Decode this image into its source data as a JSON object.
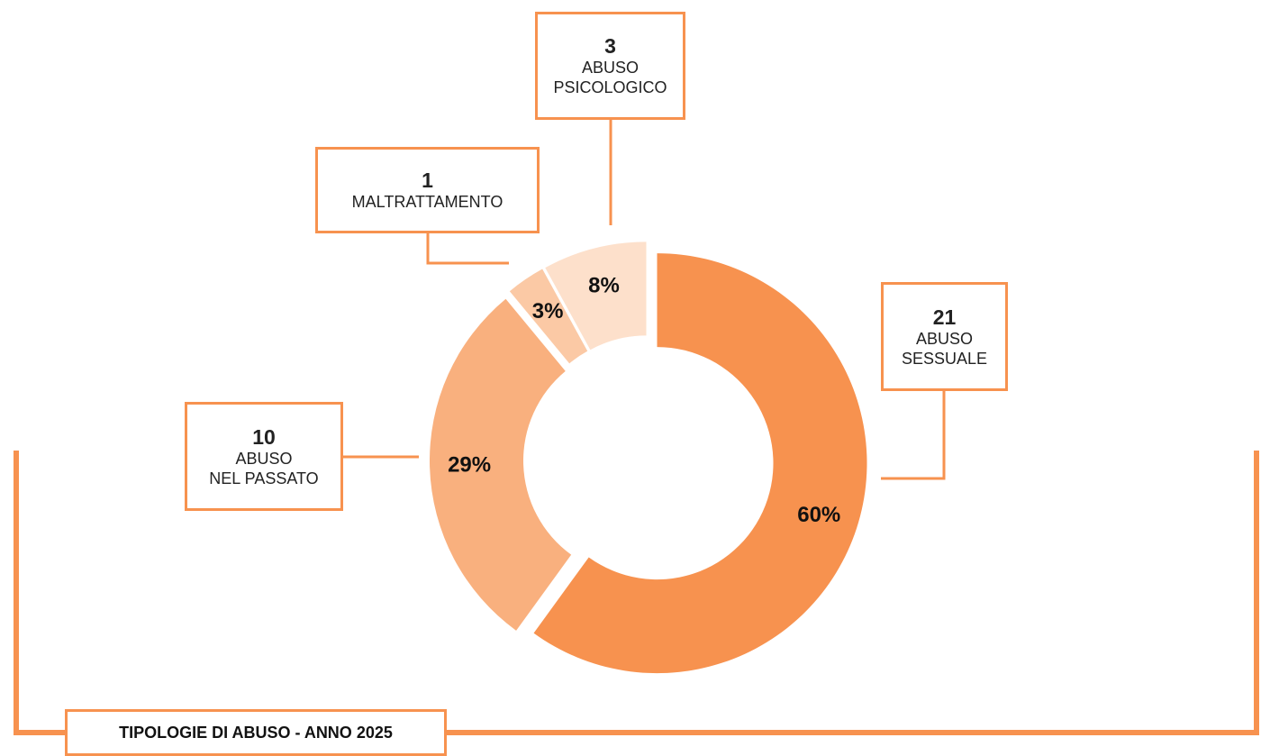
{
  "chart_data": {
    "type": "donut",
    "title": "TIPOLOGIE DI ABUSO - ANNO 2025",
    "categories": [
      "ABUSO\nSESSUALE",
      "ABUSO\nNEL PASSATO",
      "MALTRATTAMENTO",
      "ABUSO\nPSICOLOGICO"
    ],
    "counts": [
      21,
      10,
      1,
      3
    ],
    "values": [
      60,
      29,
      3,
      8
    ],
    "value_labels": [
      "60%",
      "29%",
      "3%",
      "8%"
    ],
    "colors": [
      "#f7924f",
      "#f9b07e",
      "#fbc9a5",
      "#fde0cb"
    ]
  }
}
